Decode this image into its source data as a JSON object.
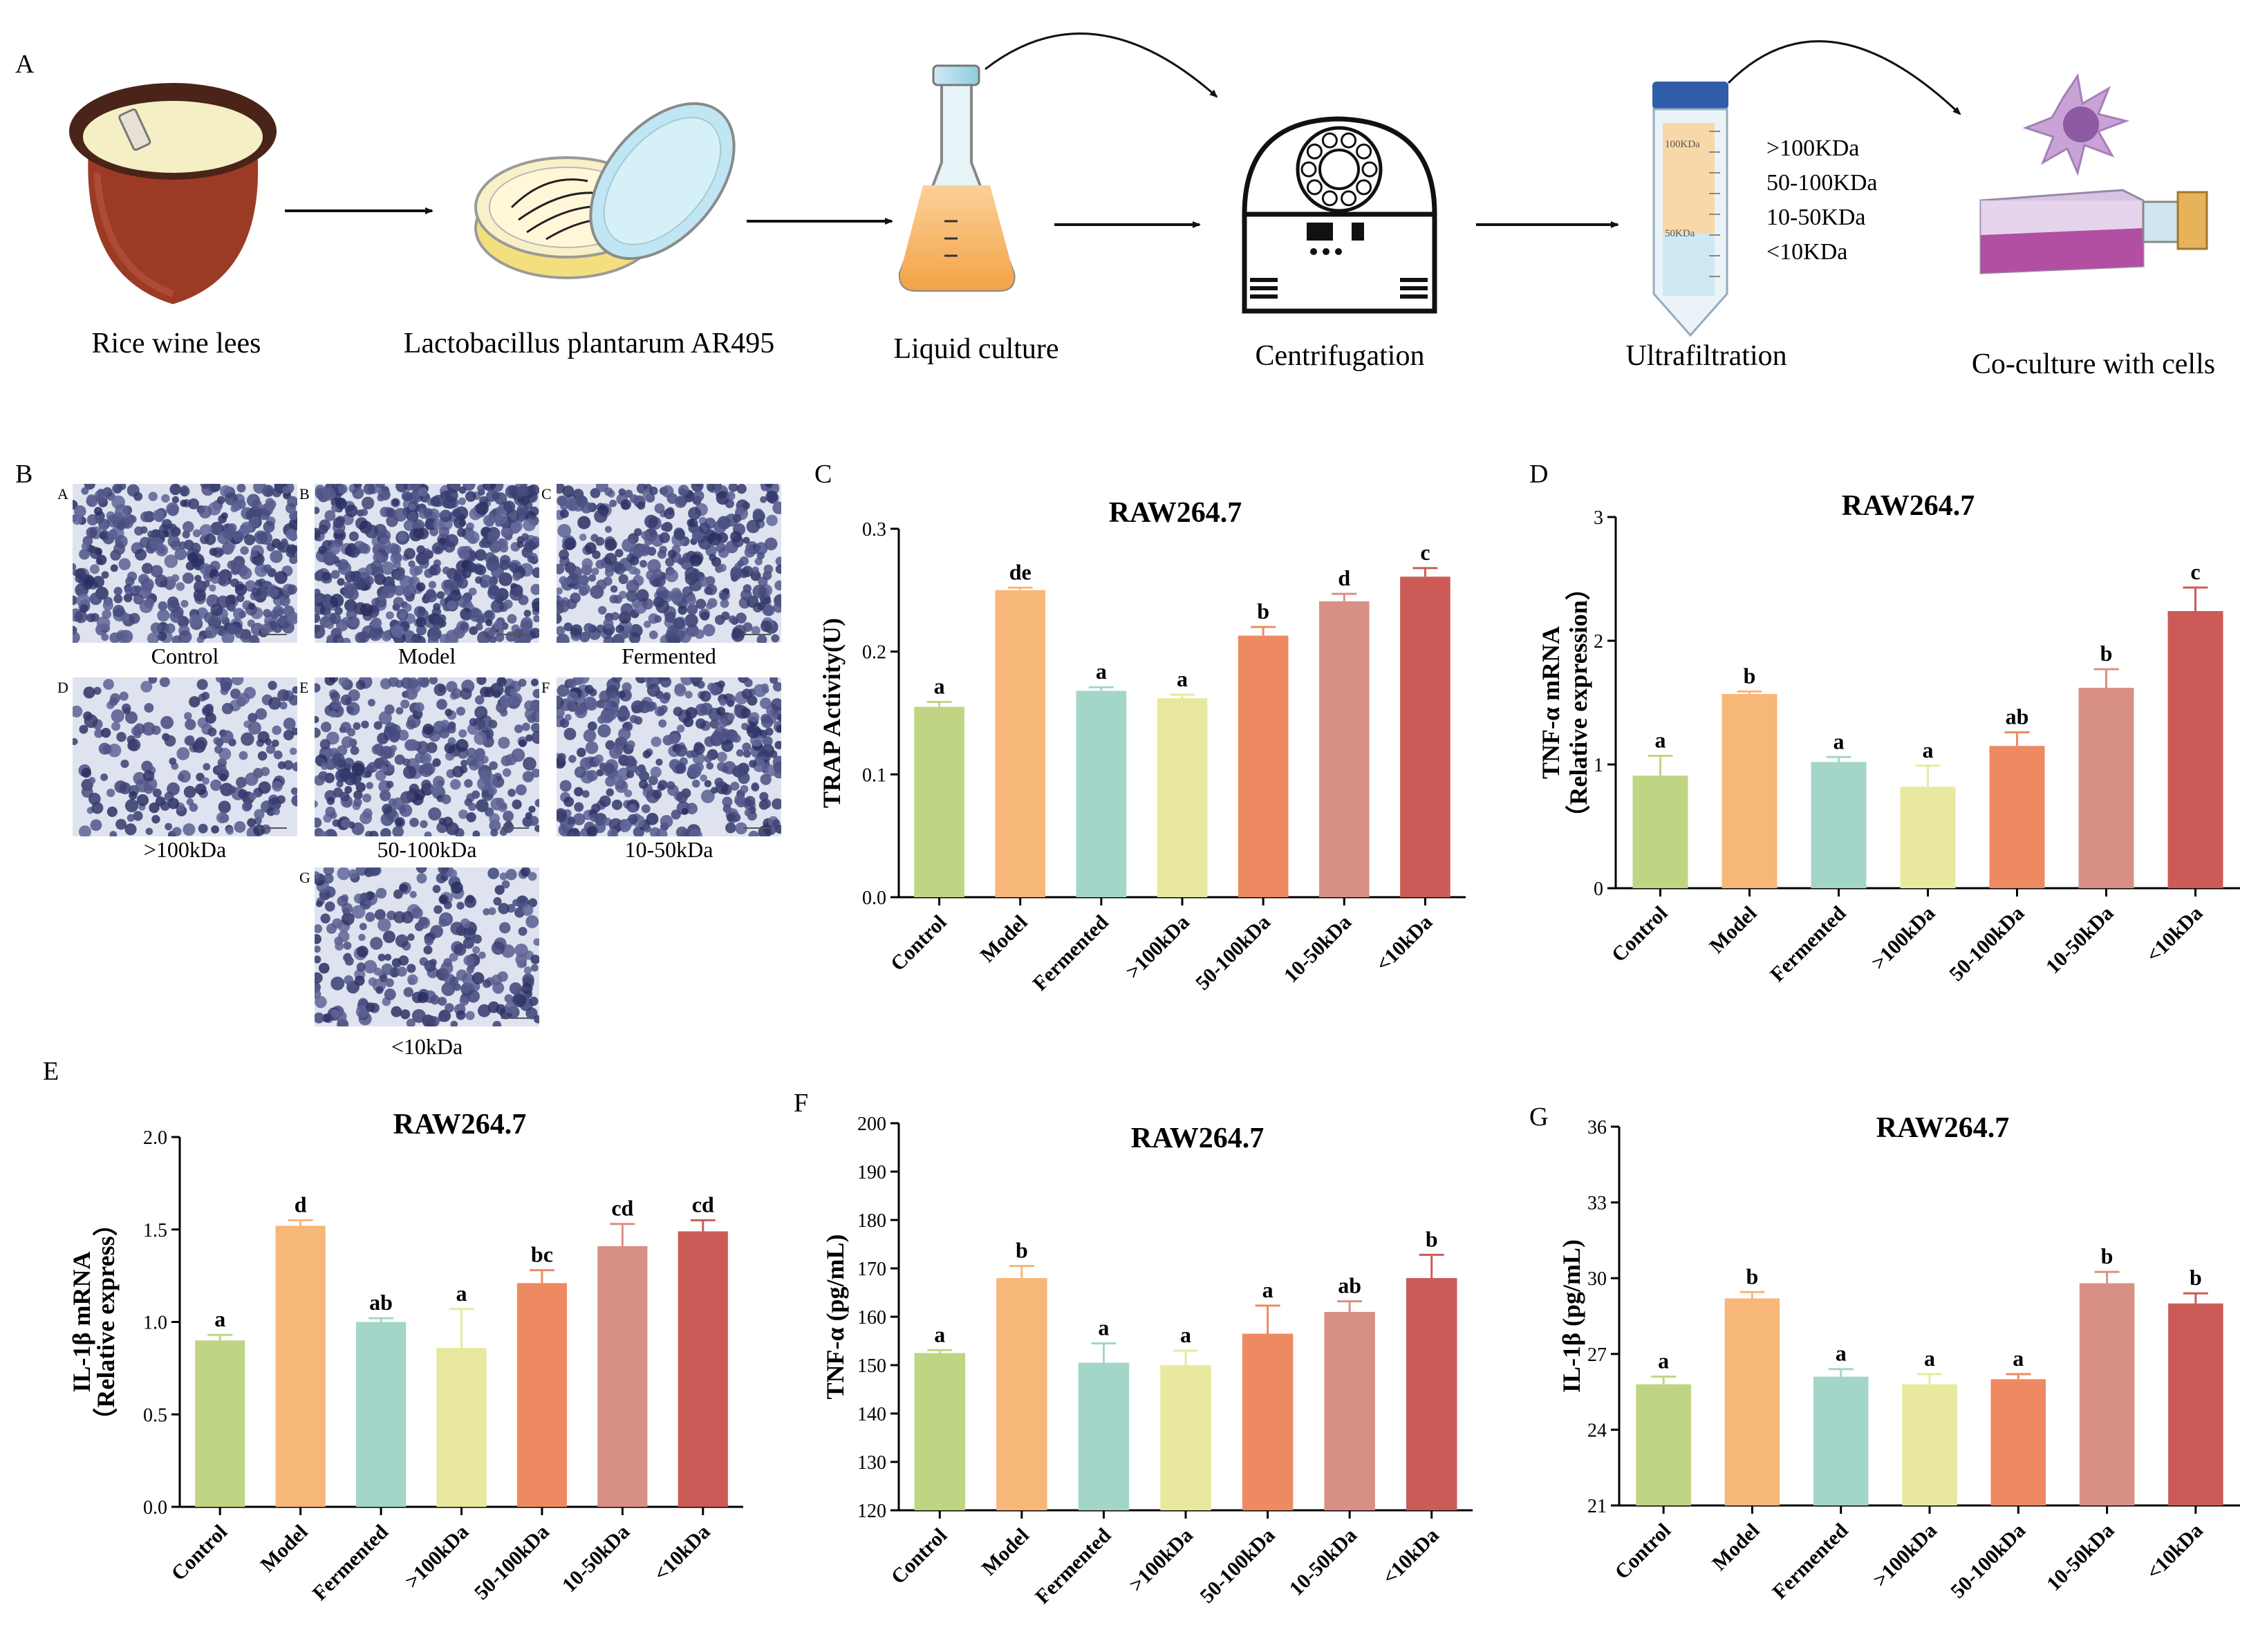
{
  "panel_letters": {
    "A": "A",
    "B": "B",
    "C": "C",
    "D": "D",
    "E": "E",
    "F": "F",
    "G": "G"
  },
  "workflow": {
    "steps": [
      {
        "label": "Rice wine lees"
      },
      {
        "label": "Lactobacillus plantarum AR495"
      },
      {
        "label": "Liquid culture"
      },
      {
        "label": "Centrifugation"
      },
      {
        "label": "Ultrafiltration"
      },
      {
        "label": "Co-culture with cells"
      }
    ],
    "fractions": [
      ">100KDa",
      "50-100KDa",
      "10-50KDa",
      "<10KDa"
    ],
    "tube_marks": [
      "100KDa",
      "50KDa"
    ]
  },
  "micrographs": {
    "tiles": [
      {
        "letter": "A",
        "caption": "Control"
      },
      {
        "letter": "B",
        "caption": "Model"
      },
      {
        "letter": "C",
        "caption": "Fermented"
      },
      {
        "letter": "D",
        "caption": ">100kDa"
      },
      {
        "letter": "E",
        "caption": "50-100kDa"
      },
      {
        "letter": "F",
        "caption": "10-50kDa"
      },
      {
        "letter": "G",
        "caption": "<10kDa"
      }
    ]
  },
  "colors": [
    "#bfd584",
    "#f7b779",
    "#a3d6c8",
    "#e8e99f",
    "#ee8a62",
    "#d99084",
    "#cc5b57"
  ],
  "chart_data": [
    {
      "id": "C",
      "type": "bar",
      "title": "RAW264.7",
      "ylabel": "TRAP Activity(U)",
      "ylabel2": "",
      "ylim": [
        0,
        0.3
      ],
      "yticks": [
        0.0,
        0.1,
        0.2,
        0.3
      ],
      "ytick_labels": [
        "0.0",
        "0.1",
        "0.2",
        "0.3"
      ],
      "categories": [
        "Control",
        "Model",
        "Fermented",
        ">100kDa",
        "50-100kDa",
        "10-50kDa",
        "<10kDa"
      ],
      "values": [
        0.155,
        0.25,
        0.168,
        0.162,
        0.213,
        0.241,
        0.261
      ],
      "errors": [
        0.004,
        0.002,
        0.003,
        0.003,
        0.007,
        0.006,
        0.007
      ],
      "letters": [
        "a",
        "de",
        "a",
        "a",
        "b",
        "d",
        "c"
      ]
    },
    {
      "id": "D",
      "type": "bar",
      "title": "RAW264.7",
      "ylabel": "TNF-α mRNA",
      "ylabel2": "（Relative expression）",
      "ylim": [
        0,
        3
      ],
      "yticks": [
        0,
        1,
        2,
        3
      ],
      "ytick_labels": [
        "0",
        "1",
        "2",
        "3"
      ],
      "categories": [
        "Control",
        "Model",
        "Fermented",
        ">100kDa",
        "50-100kDa",
        "10-50kDa",
        "<10kDa"
      ],
      "values": [
        0.91,
        1.57,
        1.02,
        0.82,
        1.15,
        1.62,
        2.24
      ],
      "errors": [
        0.16,
        0.02,
        0.04,
        0.17,
        0.11,
        0.15,
        0.19
      ],
      "letters": [
        "a",
        "b",
        "a",
        "a",
        "ab",
        "b",
        "c"
      ]
    },
    {
      "id": "E",
      "type": "bar",
      "title": "RAW264.7",
      "ylabel": "IL-1β mRNA",
      "ylabel2": "（Relative express）",
      "ylim": [
        0,
        2.0
      ],
      "yticks": [
        0.0,
        0.5,
        1.0,
        1.5,
        2.0
      ],
      "ytick_labels": [
        "0.0",
        "0.5",
        "1.0",
        "1.5",
        "2.0"
      ],
      "categories": [
        "Control",
        "Model",
        "Fermented",
        ">100kDa",
        "50-100kDa",
        "10-50kDa",
        "<10kDa"
      ],
      "values": [
        0.9,
        1.52,
        1.0,
        0.86,
        1.21,
        1.41,
        1.49
      ],
      "errors": [
        0.03,
        0.03,
        0.02,
        0.21,
        0.07,
        0.12,
        0.06
      ],
      "letters": [
        "a",
        "d",
        "ab",
        "a",
        "bc",
        "cd",
        "cd"
      ]
    },
    {
      "id": "F",
      "type": "bar",
      "title": "RAW264.7",
      "ylabel": "TNF-α (pg/mL)",
      "ylabel2": "",
      "ylim": [
        120,
        200
      ],
      "yticks": [
        120,
        130,
        140,
        150,
        160,
        170,
        180,
        190,
        200
      ],
      "ytick_labels": [
        "120",
        "130",
        "140",
        "150",
        "160",
        "170",
        "180",
        "190",
        "200"
      ],
      "categories": [
        "Control",
        "Model",
        "Fermented",
        ">100kDa",
        "50-100kDa",
        "10-50kDa",
        "<10kDa"
      ],
      "values": [
        152.5,
        168.0,
        150.5,
        150.0,
        156.5,
        161.0,
        168.0
      ],
      "errors": [
        0.6,
        2.5,
        4.0,
        3.0,
        5.8,
        2.2,
        4.8
      ],
      "letters": [
        "a",
        "b",
        "a",
        "a",
        "a",
        "ab",
        "b"
      ]
    },
    {
      "id": "G",
      "type": "bar",
      "title": "RAW264.7",
      "ylabel": "IL-1β (pg/mL)",
      "ylabel2": "",
      "ylim": [
        21,
        36
      ],
      "yticks": [
        21,
        24,
        27,
        30,
        33,
        36
      ],
      "ytick_labels": [
        "21",
        "24",
        "27",
        "30",
        "33",
        "36"
      ],
      "categories": [
        "Control",
        "Model",
        "Fermented",
        ">100kDa",
        "50-100kDa",
        "10-50kDa",
        "<10kDa"
      ],
      "values": [
        25.8,
        29.2,
        26.1,
        25.8,
        26.0,
        29.8,
        29.0
      ],
      "errors": [
        0.3,
        0.25,
        0.3,
        0.4,
        0.2,
        0.45,
        0.4
      ],
      "letters": [
        "a",
        "b",
        "a",
        "a",
        "a",
        "b",
        "b"
      ]
    }
  ]
}
